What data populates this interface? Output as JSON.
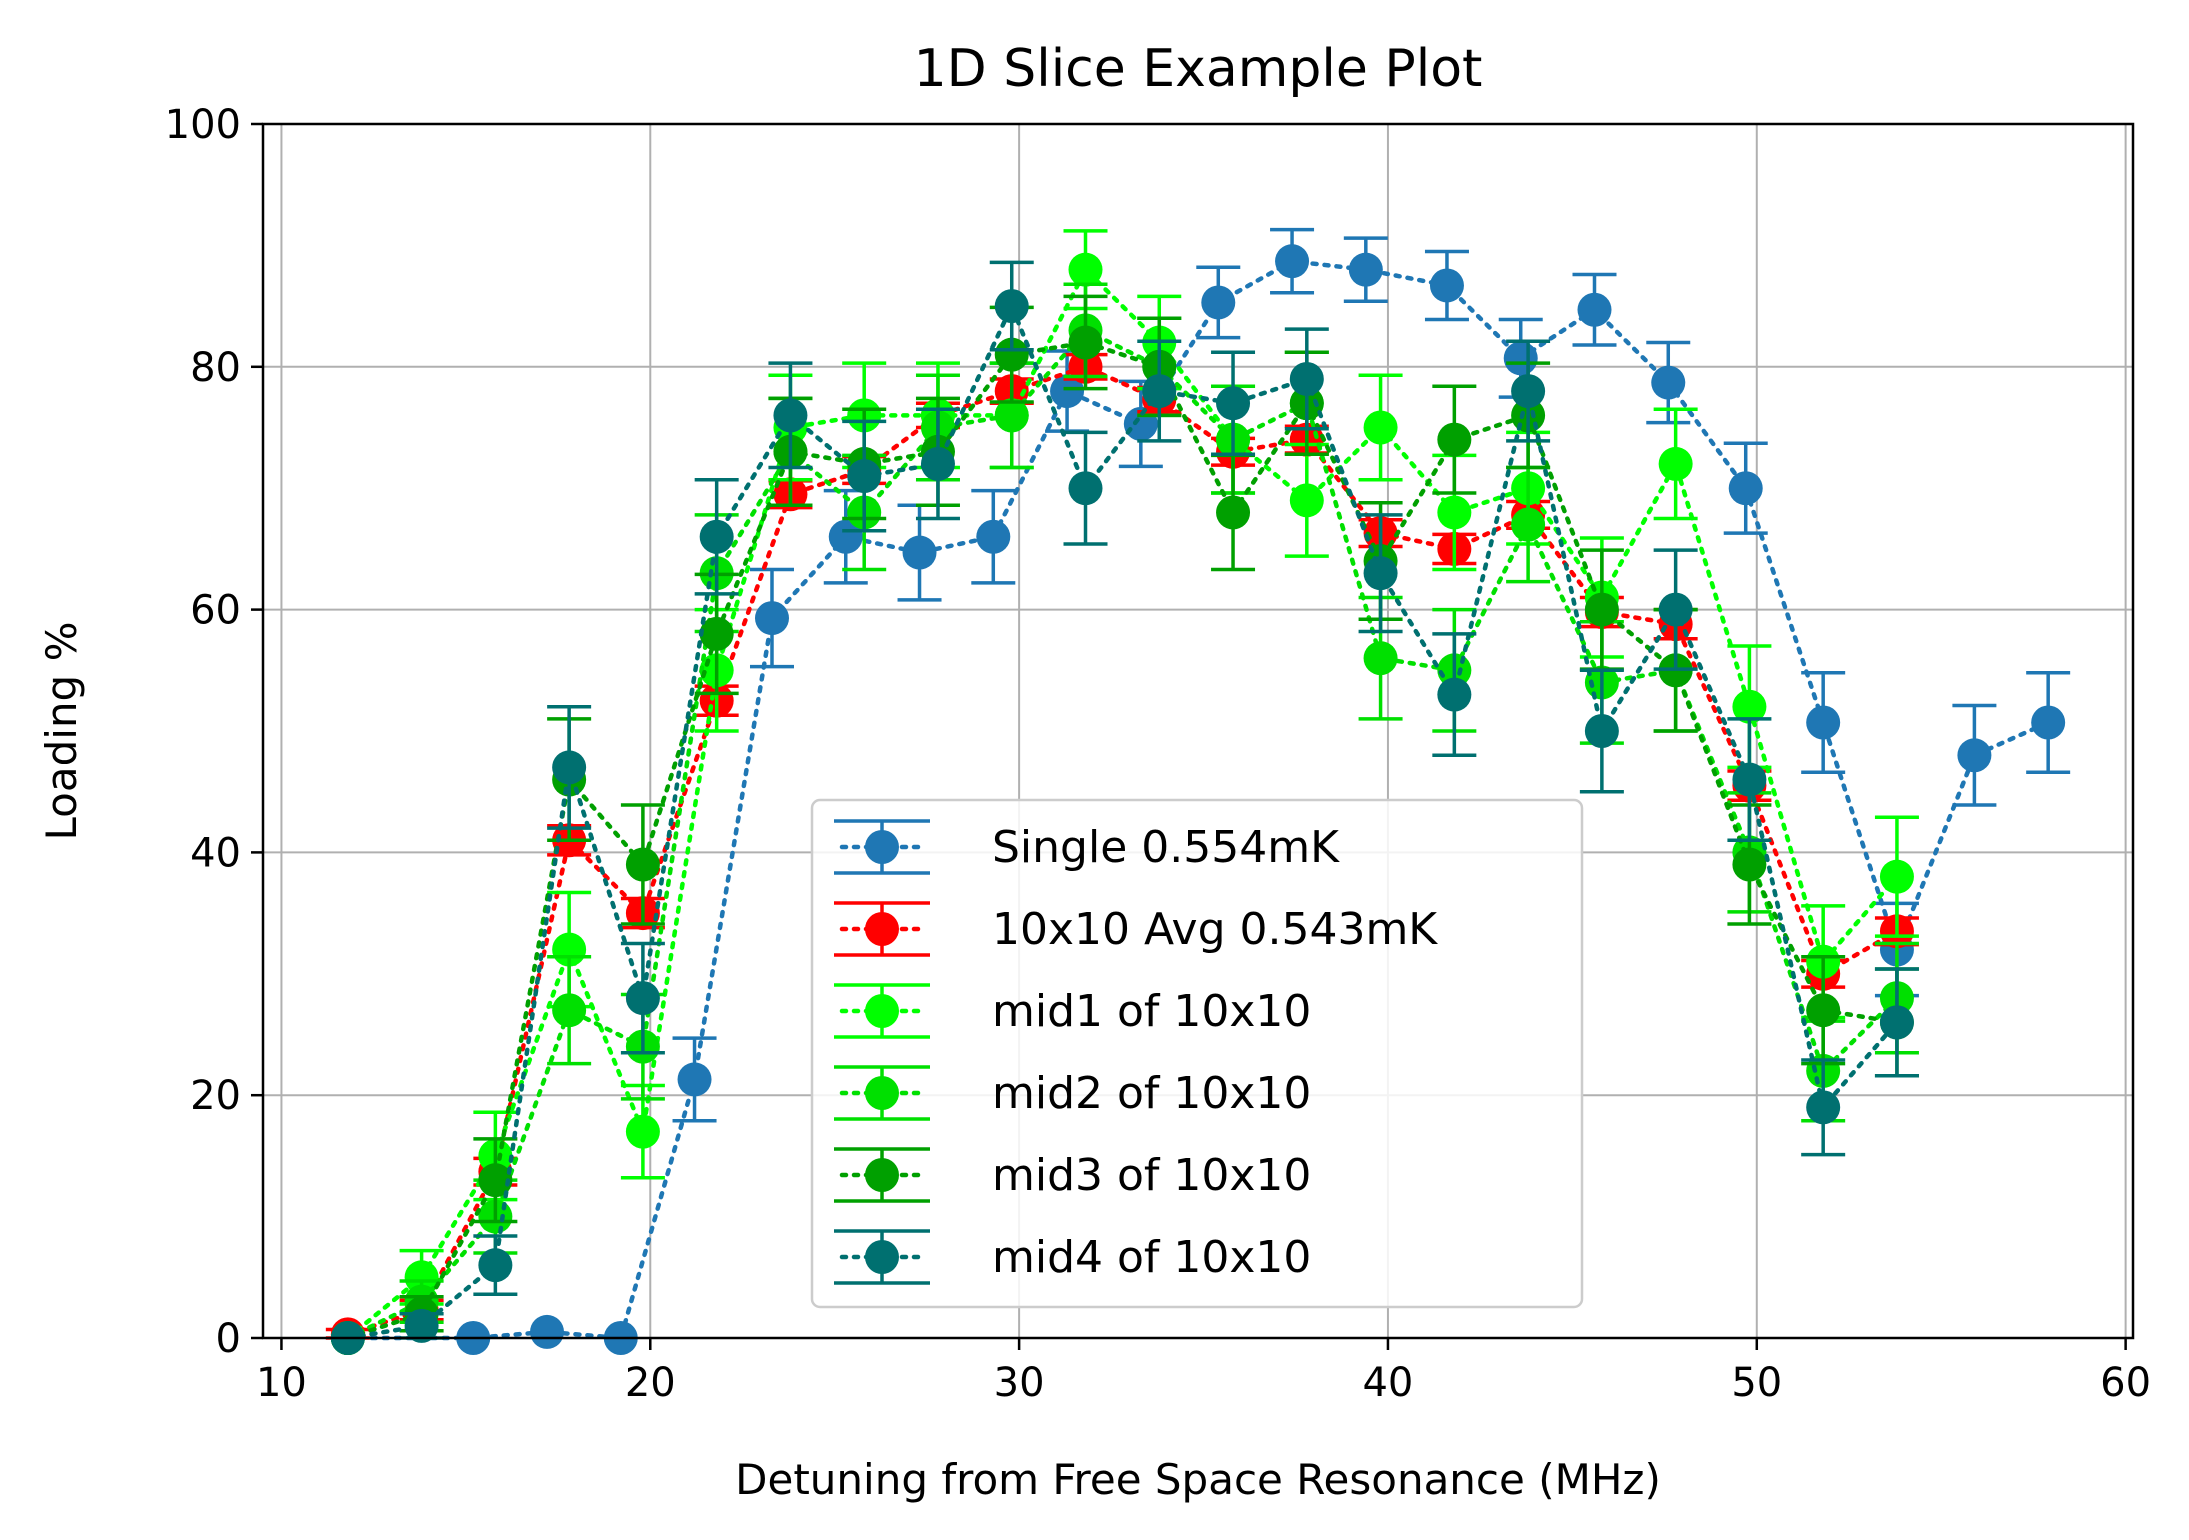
{
  "chart_data": {
    "type": "scatter",
    "title": "1D Slice Example Plot",
    "xlabel": "Detuning from Free Space Resonance (MHz)",
    "ylabel": "Loading %",
    "xlim": [
      9.5,
      60.2
    ],
    "ylim": [
      0,
      100
    ],
    "xticks": [
      10,
      20,
      30,
      40,
      50,
      60
    ],
    "yticks": [
      0,
      20,
      40,
      60,
      80,
      100
    ],
    "grid": true,
    "legend_position": "lower-center",
    "series": [
      {
        "name": "Single 0.554mK",
        "color": "#1f77b4",
        "x": [
          11.8,
          15.2,
          17.2,
          19.2,
          21.2,
          23.3,
          25.3,
          27.3,
          29.3,
          31.3,
          33.3,
          35.4,
          37.4,
          39.4,
          41.6,
          43.6,
          45.6,
          47.6,
          49.7,
          51.8,
          53.8,
          55.9,
          57.9
        ],
        "y": [
          0,
          0,
          0.5,
          0,
          21.3,
          59.3,
          66,
          64.7,
          66,
          78,
          75.3,
          85.3,
          88.7,
          88,
          86.7,
          80.7,
          84.7,
          78.7,
          70,
          50.7,
          32,
          48,
          50.7
        ],
        "err": [
          0,
          0,
          0,
          0,
          3.4,
          4,
          3.8,
          3.9,
          3.8,
          3.3,
          3.5,
          2.9,
          2.6,
          2.6,
          2.8,
          3.2,
          2.9,
          3.3,
          3.7,
          4.1,
          3.8,
          4.1,
          4.1
        ]
      },
      {
        "name": "10x10 Avg 0.543mK",
        "color": "#ff0000",
        "x": [
          11.8,
          13.8,
          15.8,
          17.8,
          19.8,
          21.8,
          23.8,
          25.8,
          27.8,
          29.8,
          31.8,
          33.8,
          35.8,
          37.8,
          39.8,
          41.8,
          43.8,
          45.8,
          47.8,
          49.8,
          51.8,
          53.8
        ],
        "y": [
          0.3,
          2.3,
          13.7,
          41,
          35,
          52.5,
          69.5,
          71.5,
          76,
          78,
          80,
          77.3,
          73,
          74,
          66.3,
          65,
          67.8,
          59.8,
          58.8,
          45.5,
          30,
          33.5
        ],
        "err": [
          0.4,
          0.8,
          1.1,
          1.2,
          1.2,
          1.2,
          1.1,
          1.1,
          1.0,
          1.0,
          1.0,
          1.0,
          1.1,
          1.1,
          1.1,
          1.2,
          1.1,
          1.2,
          1.2,
          1.2,
          1.1,
          1.1
        ]
      },
      {
        "name": "mid1 of 10x10",
        "color": "#00ff00",
        "x": [
          11.8,
          13.8,
          15.8,
          17.8,
          19.8,
          21.8,
          23.8,
          25.8,
          27.8,
          29.8,
          31.8,
          33.8,
          35.8,
          37.8,
          39.8,
          41.8,
          43.8,
          45.8,
          47.8,
          49.8,
          51.8,
          53.8
        ],
        "y": [
          0,
          5,
          15,
          32,
          17,
          55,
          75,
          76,
          76,
          76,
          88,
          82,
          74,
          69,
          75,
          68,
          70,
          61,
          72,
          52,
          31,
          38
        ],
        "err": [
          0,
          2.2,
          3.6,
          4.7,
          3.8,
          5.0,
          4.3,
          4.3,
          4.3,
          4.3,
          3.2,
          3.8,
          4.4,
          4.6,
          4.3,
          4.7,
          4.6,
          4.9,
          4.5,
          5.0,
          4.6,
          4.9
        ]
      },
      {
        "name": "mid2 of 10x10",
        "color": "#00e000",
        "x": [
          11.8,
          13.8,
          15.8,
          17.8,
          19.8,
          21.8,
          23.8,
          25.8,
          27.8,
          29.8,
          31.8,
          33.8,
          35.8,
          37.8,
          39.8,
          41.8,
          43.8,
          45.8,
          47.8,
          49.8,
          51.8,
          53.8
        ],
        "y": [
          0,
          3,
          10,
          27,
          24,
          63,
          73,
          68,
          75,
          76,
          83,
          80,
          74,
          77,
          56,
          55,
          67,
          54,
          55,
          40,
          22,
          28
        ],
        "err": [
          0,
          1.7,
          3.0,
          4.4,
          4.3,
          4.8,
          4.4,
          4.7,
          4.3,
          4.3,
          3.8,
          4.0,
          4.4,
          4.2,
          5.0,
          5.0,
          4.7,
          5.0,
          5.0,
          4.9,
          4.1,
          4.5
        ]
      },
      {
        "name": "mid3 of 10x10",
        "color": "#00a000",
        "x": [
          11.8,
          13.8,
          15.8,
          17.8,
          19.8,
          21.8,
          23.8,
          25.8,
          27.8,
          29.8,
          31.8,
          33.8,
          35.8,
          37.8,
          39.8,
          41.8,
          43.8,
          45.8,
          47.8,
          49.8,
          51.8,
          53.8
        ],
        "y": [
          0,
          2,
          13,
          46,
          39,
          58,
          73,
          72,
          73,
          81,
          82,
          80,
          68,
          77,
          64,
          74,
          76,
          60,
          55,
          39,
          27,
          26
        ],
        "err": [
          0,
          1.4,
          3.4,
          5.0,
          4.9,
          4.9,
          4.4,
          4.5,
          4.4,
          3.9,
          3.8,
          4.0,
          4.7,
          4.2,
          4.8,
          4.4,
          4.3,
          4.9,
          5.0,
          4.9,
          4.4,
          4.4
        ]
      },
      {
        "name": "mid4 of 10x10",
        "color": "#007070",
        "x": [
          11.8,
          13.8,
          15.8,
          17.8,
          19.8,
          21.8,
          23.8,
          25.8,
          27.8,
          29.8,
          31.8,
          33.8,
          35.8,
          37.8,
          39.8,
          41.8,
          43.8,
          45.8,
          47.8,
          49.8,
          51.8,
          53.8
        ],
        "y": [
          0,
          1,
          6,
          47,
          28,
          66,
          76,
          71,
          72,
          85,
          70,
          78,
          77,
          79,
          63,
          53,
          78,
          50,
          60,
          46,
          19,
          26
        ],
        "err": [
          0,
          1.0,
          2.4,
          5.0,
          4.5,
          4.7,
          4.3,
          4.5,
          4.5,
          3.6,
          4.6,
          4.1,
          4.2,
          4.1,
          4.8,
          5.0,
          4.1,
          5.0,
          4.9,
          5.0,
          3.9,
          4.4
        ]
      }
    ]
  }
}
